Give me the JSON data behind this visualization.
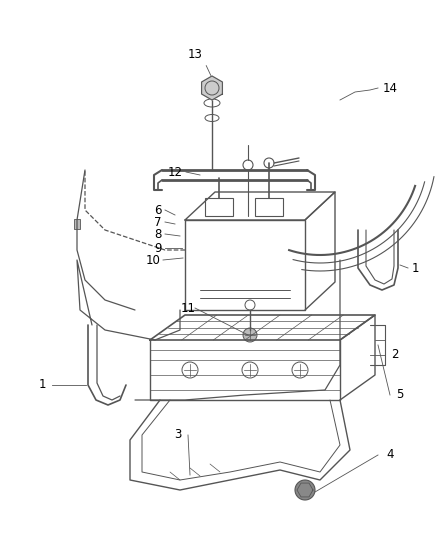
{
  "background_color": "#ffffff",
  "line_color": "#555555",
  "label_color": "#000000",
  "fig_width": 4.38,
  "fig_height": 5.33,
  "dpi": 100
}
